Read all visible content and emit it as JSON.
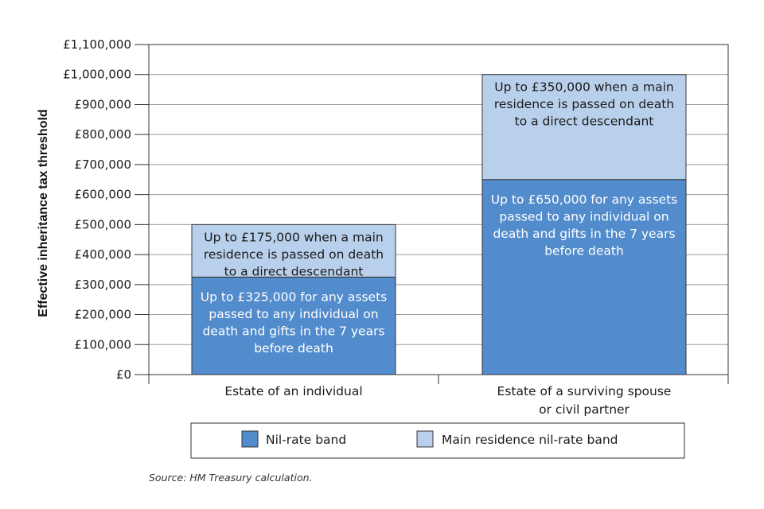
{
  "chart_data": {
    "type": "bar",
    "stacked": true,
    "ylabel": "Effective inheritance tax threshold",
    "xlabel": "",
    "ylim": [
      0,
      1100000
    ],
    "y_ticks": [
      0,
      100000,
      200000,
      300000,
      400000,
      500000,
      600000,
      700000,
      800000,
      900000,
      1000000,
      1100000
    ],
    "y_tick_labels": [
      "£0",
      "£100,000",
      "£200,000",
      "£300,000",
      "£400,000",
      "£500,000",
      "£600,000",
      "£700,000",
      "£800,000",
      "£900,000",
      "£1,000,000",
      "£1,100,000"
    ],
    "grid": true,
    "categories": [
      [
        "Estate of an individual"
      ],
      [
        "Estate of a surviving spouse",
        "or civil partner"
      ]
    ],
    "series": [
      {
        "name": "Nil-rate band",
        "color": "#538ccc",
        "text_color": "#ffffff",
        "values": [
          325000,
          650000
        ],
        "annotations": [
          [
            "Up to £325,000 for any assets",
            "passed to any individual on",
            "death and gifts in the 7 years",
            "before death"
          ],
          [
            "Up to £650,000 for any assets",
            "passed to any individual on",
            "death and gifts in the 7 years",
            "before death"
          ]
        ]
      },
      {
        "name": "Main residence nil-rate band",
        "color": "#b9d0ec",
        "text_color": "#1a1a1a",
        "values": [
          175000,
          350000
        ],
        "annotations": [
          [
            "Up to £175,000 when a main",
            "residence is passed on death",
            "to a direct descendant"
          ],
          [
            "Up to £350,000 when a main",
            "residence is passed on death",
            "to a direct descendant"
          ]
        ]
      }
    ],
    "legend_position": "bottom"
  },
  "source": "Source:  HM Treasury calculation."
}
